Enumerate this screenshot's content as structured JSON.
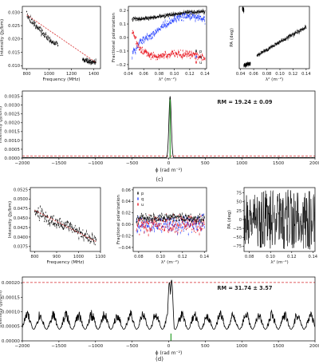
{
  "figure": {
    "caption_c": "(c)",
    "caption_d": "(d)"
  },
  "chart_data": [
    {
      "id": "c_intensity",
      "type": "scatter",
      "xlabel": "Frequency (MHz)",
      "ylabel": "Intensity (Jy/bm)",
      "xlim": [
        760,
        1460
      ],
      "ylim": [
        0.0089,
        0.0322
      ],
      "xticks": [
        800,
        1000,
        1200,
        1400
      ],
      "yticks": [
        0.01,
        0.015,
        0.02,
        0.025,
        0.03
      ],
      "ytick_decimals": 3,
      "series": [
        {
          "color": "#000000",
          "style": "noisy",
          "x": [
            800,
            840,
            880,
            920,
            960,
            1000,
            1040,
            1080
          ],
          "y": [
            0.029,
            0.0268,
            0.025,
            0.0232,
            0.0214,
            0.02,
            0.0188,
            0.0177
          ],
          "noise": 0.0011
        },
        {
          "color": "#000000",
          "style": "noisy",
          "x": [
            1300,
            1340,
            1380,
            1420
          ],
          "y": [
            0.0123,
            0.0118,
            0.0115,
            0.0112
          ],
          "noise": 0.0007
        },
        {
          "color": "#d62728",
          "style": "dashed",
          "x": [
            800,
            1420
          ],
          "y": [
            0.029,
            0.0112
          ]
        }
      ]
    },
    {
      "id": "c_fracpol",
      "type": "scatter",
      "xlabel": "λ² (m⁻²)",
      "ylabel": "Fractional polarization",
      "xlim": [
        0.04,
        0.142
      ],
      "ylim": [
        -0.23,
        0.23
      ],
      "xticks": [
        0.04,
        0.06,
        0.08,
        0.1,
        0.12,
        0.14
      ],
      "yticks": [
        -0.2,
        -0.1,
        0.0,
        0.1,
        0.2
      ],
      "ytick_decimals": 1,
      "legend": {
        "position": "bottom-right",
        "entries": [
          "p",
          "q",
          "u"
        ]
      },
      "series": [
        {
          "name": "p",
          "color": "#000000",
          "style": "noisy",
          "x": [
            0.045,
            0.06,
            0.075,
            0.09,
            0.105,
            0.12,
            0.135,
            0.14
          ],
          "y": [
            0.135,
            0.14,
            0.15,
            0.165,
            0.175,
            0.185,
            0.19,
            0.19
          ],
          "noise": 0.012
        },
        {
          "name": "q",
          "color": "#1f3bff",
          "style": "noisy",
          "x": [
            0.045,
            0.055,
            0.07,
            0.085,
            0.1,
            0.115,
            0.13,
            0.14
          ],
          "y": [
            -0.12,
            -0.03,
            0.02,
            0.08,
            0.135,
            0.165,
            0.15,
            0.13
          ],
          "noise": 0.025
        },
        {
          "name": "u",
          "color": "#e8101a",
          "style": "noisy",
          "x": [
            0.045,
            0.055,
            0.07,
            0.085,
            0.1,
            0.115,
            0.13,
            0.14
          ],
          "y": [
            0.05,
            -0.09,
            -0.13,
            -0.135,
            -0.12,
            -0.12,
            -0.14,
            -0.15
          ],
          "noise": 0.025
        }
      ]
    },
    {
      "id": "c_pa",
      "type": "scatter",
      "xlabel": "λ² (m⁻²)",
      "ylabel": "PA (deg)",
      "xlim": [
        0.038,
        0.145
      ],
      "ylim": [
        -95,
        92
      ],
      "xticks": [
        0.04,
        0.06,
        0.08,
        0.1,
        0.12,
        0.14
      ],
      "yticks": [],
      "ytick_decimals": 0,
      "series": [
        {
          "color": "#000000",
          "style": "noisy",
          "x": [
            0.043,
            0.045
          ],
          "y": [
            85,
            80
          ],
          "noise": 4
        },
        {
          "color": "#000000",
          "style": "noisy",
          "x": [
            0.045,
            0.055
          ],
          "y": [
            -85,
            -80
          ],
          "noise": 4
        },
        {
          "color": "#000000",
          "style": "noisy",
          "x": [
            0.065,
            0.1,
            0.14
          ],
          "y": [
            -55,
            -15,
            30
          ],
          "noise": 4
        }
      ]
    },
    {
      "id": "c_rm",
      "type": "line",
      "xlabel": "ϕ (rad m⁻²)",
      "ylabel": "Intensity (Jy/bm)",
      "xlim": [
        -2000,
        2000
      ],
      "ylim": [
        0,
        0.0038
      ],
      "xticks": [
        -2000,
        -1500,
        -1000,
        -500,
        0,
        500,
        1000,
        1500,
        2000
      ],
      "yticks": [
        0.0,
        0.0005,
        0.001,
        0.0015,
        0.002,
        0.0025,
        0.003,
        0.0035
      ],
      "ytick_decimals": 4,
      "annotation": "RM = 19.24 ± 0.09",
      "peak": {
        "x": 19.24,
        "y": 0.0035,
        "width": 16
      },
      "baseline": 4e-05,
      "threshold": {
        "y": 0.00012,
        "color": "#d62728",
        "style": "dashed"
      },
      "clean_component": {
        "color": "#2ca02c"
      }
    },
    {
      "id": "d_intensity",
      "type": "scatter",
      "xlabel": "Frequency (MHz)",
      "ylabel": "Intensity (Jy/bm)",
      "xlim": [
        780,
        1100
      ],
      "ylim": [
        0.0362,
        0.053
      ],
      "xticks": [
        800,
        900,
        1000,
        1100
      ],
      "yticks": [
        0.0375,
        0.04,
        0.0425,
        0.045,
        0.0475,
        0.05,
        0.0525
      ],
      "ytick_decimals": 4,
      "series": [
        {
          "color": "#000000",
          "style": "noisy",
          "x": [
            800,
            840,
            880,
            920,
            960,
            1000,
            1040,
            1080
          ],
          "y": [
            0.047,
            0.0455,
            0.044,
            0.0435,
            0.043,
            0.041,
            0.04,
            0.039
          ],
          "noise": 0.0014
        },
        {
          "color": "#d62728",
          "style": "dashed",
          "x": [
            800,
            1080
          ],
          "y": [
            0.047,
            0.0388
          ]
        }
      ]
    },
    {
      "id": "d_fracpol",
      "type": "scatter",
      "xlabel": "λ² (m⁻²)",
      "ylabel": "Fractional polarization",
      "xlim": [
        0.075,
        0.142
      ],
      "ylim": [
        -0.047,
        0.064
      ],
      "xticks": [
        0.08,
        0.1,
        0.12,
        0.14
      ],
      "yticks": [
        -0.04,
        -0.02,
        0.0,
        0.02,
        0.04,
        0.06
      ],
      "ytick_decimals": 2,
      "legend": {
        "position": "top-left",
        "entries": [
          "p",
          "q",
          "u"
        ]
      },
      "series": [
        {
          "name": "q",
          "color": "#1f3bff",
          "style": "noisy",
          "x": [
            0.078,
            0.09,
            0.1,
            0.11,
            0.12,
            0.13,
            0.14
          ],
          "y": [
            0.0,
            0.0,
            0.0,
            0.0,
            0.0,
            0.0,
            0.0
          ],
          "noise": 0.014
        },
        {
          "name": "u",
          "color": "#e8101a",
          "style": "noisy",
          "x": [
            0.078,
            0.09,
            0.1,
            0.11,
            0.12,
            0.13,
            0.14
          ],
          "y": [
            0.0,
            0.0,
            0.0,
            0.0,
            0.0,
            0.0,
            0.0
          ],
          "noise": 0.014
        },
        {
          "name": "p",
          "color": "#000000",
          "style": "noisy",
          "x": [
            0.078,
            0.09,
            0.1,
            0.11,
            0.12,
            0.13,
            0.14
          ],
          "y": [
            0.01,
            0.01,
            0.012,
            0.012,
            0.012,
            0.01,
            0.01
          ],
          "noise": 0.006
        }
      ]
    },
    {
      "id": "d_pa",
      "type": "scatter",
      "xlabel": "λ² (m⁻²)",
      "ylabel": "PA (deg)",
      "xlim": [
        0.075,
        0.142
      ],
      "ylim": [
        -90,
        90
      ],
      "xticks": [
        0.08,
        0.1,
        0.12,
        0.14
      ],
      "yticks": [
        -75,
        -50,
        -25,
        0,
        25,
        50,
        75
      ],
      "ytick_decimals": 0,
      "series": [
        {
          "color": "#000000",
          "style": "random-walk",
          "x": [
            0.075,
            0.142
          ],
          "y": [
            -85,
            85
          ],
          "noise": 85
        }
      ]
    },
    {
      "id": "d_rm",
      "type": "line",
      "xlabel": "ϕ (rad m⁻²)",
      "ylabel": "Intensity (Jy/bm)",
      "xlim": [
        -2000,
        2000
      ],
      "ylim": [
        0,
        0.00022
      ],
      "xticks": [
        -2000,
        -1500,
        -1000,
        -500,
        0,
        500,
        1000,
        1500,
        2000
      ],
      "yticks": [
        0.0,
        5e-05,
        0.0001,
        0.00015,
        0.0002
      ],
      "ytick_decimals": 5,
      "annotation": "RM = 31.74 ± 3.57",
      "peak": {
        "x": 31.74,
        "y": 0.00021,
        "width": 40
      },
      "baseline": 4e-05,
      "threshold": {
        "y": 0.000201,
        "color": "#d62728",
        "style": "dashed"
      },
      "clean_component": {
        "color": "#2ca02c"
      }
    }
  ]
}
